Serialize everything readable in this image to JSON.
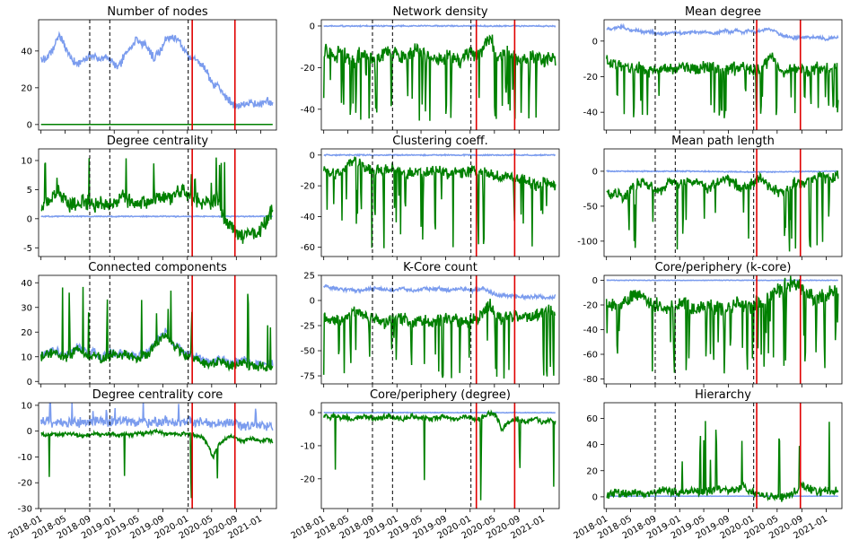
{
  "chart_data": {
    "type": "line",
    "layout": "4x3 grid, shared date x-axis",
    "x_tick_labels": [
      "2018-01",
      "2018-05",
      "2018-09",
      "2019-01",
      "2019-05",
      "2019-09",
      "2020-01",
      "2020-05",
      "2020-09",
      "2021-01"
    ],
    "x_range": [
      "2017-12-20",
      "2021-03-20"
    ],
    "colors": {
      "series_a": "#7b9cee",
      "series_b": "#008000",
      "event_major": "#e00000",
      "event_minor": "#000000"
    },
    "events_dashed": [
      "2018-09-01",
      "2018-12-10",
      "2020-01-05"
    ],
    "events_solid_col0": [
      "2020-01-25",
      "2020-08-25"
    ],
    "events_solid_col1": [
      "2020-02-01",
      "2020-08-10"
    ],
    "events_solid_col2": [
      "2020-01-20",
      "2020-08-25"
    ],
    "panels": [
      {
        "title": "Number of nodes",
        "col": 0,
        "row": 0,
        "ylim": [
          -3,
          57
        ],
        "yticks": [
          0,
          20,
          40
        ],
        "a": {
          "base": [
            35,
            36,
            40,
            49,
            43,
            36,
            33,
            34,
            37,
            37,
            36,
            36,
            34,
            31,
            37,
            42,
            46,
            44,
            42,
            36,
            40,
            46,
            48,
            46,
            42,
            36,
            36,
            33,
            28,
            22,
            20,
            15,
            12,
            10,
            11,
            12,
            11,
            11,
            13,
            12
          ],
          "vol": 1.8,
          "seed": 11
        },
        "b": {
          "base": [
            0,
            0
          ],
          "vol": 0,
          "seed": 12
        }
      },
      {
        "title": "Network density",
        "col": 1,
        "row": 0,
        "ylim": [
          -50,
          3
        ],
        "yticks": [
          0,
          -20,
          -40
        ],
        "a": {
          "base": [
            0,
            0,
            0,
            0
          ],
          "vol": 0.25,
          "seed": 21
        },
        "b": {
          "base": [
            -12,
            -13,
            -14,
            -12,
            -16,
            -17,
            -14,
            -13,
            -15,
            -16,
            -14,
            -13,
            -12,
            -15,
            -14,
            -13,
            -12,
            -14,
            -15,
            -16,
            -15,
            -14,
            -15,
            -16,
            -14,
            -13,
            -15,
            -10,
            -5,
            -14,
            -15,
            -13,
            -14,
            -15,
            -16,
            -14,
            -15,
            -16,
            -15,
            -16
          ],
          "vol": 3.0,
          "seed": 22,
          "spikes": 38,
          "spikeMin": -46
        }
      },
      {
        "title": "Mean degree",
        "col": 2,
        "row": 0,
        "ylim": [
          -50,
          12
        ],
        "yticks": [
          0,
          -20,
          -40
        ],
        "a": {
          "base": [
            7,
            7,
            8,
            8,
            6,
            6,
            5,
            5,
            5,
            4,
            4,
            5,
            5,
            4,
            5,
            5,
            5,
            5,
            4,
            5,
            6,
            5,
            6,
            5,
            6,
            5,
            6,
            7,
            6,
            4,
            3,
            2,
            2,
            2,
            2,
            2,
            2,
            1,
            2,
            2
          ],
          "vol": 0.7,
          "seed": 31
        },
        "b": {
          "base": [
            -10,
            -13,
            -12,
            -14,
            -16,
            -15,
            -14,
            -17,
            -16,
            -15,
            -14,
            -16,
            -15,
            -14,
            -15,
            -16,
            -15,
            -14,
            -15,
            -16,
            -17,
            -16,
            -15,
            -14,
            -16,
            -17,
            -15,
            -12,
            -8,
            -15,
            -20,
            -16,
            -15,
            -16,
            -17,
            -16,
            -15,
            -16,
            -15,
            -14
          ],
          "vol": 2.8,
          "seed": 32,
          "spikes": 30,
          "spikeMin": -45
        }
      },
      {
        "title": "Degree centrality",
        "col": 0,
        "row": 1,
        "ylim": [
          -6.5,
          12
        ],
        "yticks": [
          -5,
          0,
          5,
          10
        ],
        "a": {
          "base": [
            0.4,
            0.4
          ],
          "vol": 0.07,
          "seed": 41
        },
        "b": {
          "base": [
            2,
            2.5,
            4,
            5,
            3,
            2.5,
            2,
            3,
            3,
            2.5,
            3,
            2.5,
            2.5,
            3,
            4,
            3,
            2.5,
            3,
            2.5,
            3,
            3.5,
            4,
            3.5,
            4.5,
            5,
            4,
            3,
            3,
            2.5,
            3,
            2.5,
            0,
            -1,
            -2.5,
            -3,
            -2,
            -2.5,
            -2,
            0,
            2
          ],
          "vol": 1.1,
          "seed": 42,
          "spikes": 12,
          "spikeMax": 11
        }
      },
      {
        "title": "Clustering coeff.",
        "col": 1,
        "row": 1,
        "ylim": [
          -66,
          4
        ],
        "yticks": [
          0,
          -20,
          -40,
          -60
        ],
        "a": {
          "base": [
            0,
            0,
            0
          ],
          "vol": 0.3,
          "seed": 51
        },
        "b": {
          "base": [
            -10,
            -12,
            -13,
            -10,
            -6,
            -4,
            -5,
            -8,
            -9,
            -10,
            -11,
            -9,
            -8,
            -10,
            -12,
            -11,
            -10,
            -12,
            -10,
            -9,
            -11,
            -12,
            -10,
            -11,
            -12,
            -10,
            -11,
            -9,
            -12,
            -14,
            -15,
            -13,
            -14,
            -16,
            -15,
            -18,
            -20,
            -17,
            -18,
            -19
          ],
          "vol": 2.8,
          "seed": 52,
          "spikes": 30,
          "spikeMin": -62
        }
      },
      {
        "title": "Mean path length",
        "col": 2,
        "row": 1,
        "ylim": [
          -122,
          32
        ],
        "yticks": [
          0,
          -50,
          -100
        ],
        "a": {
          "base": [
            0,
            0,
            -1,
            0
          ],
          "vol": 0.6,
          "seed": 61
        },
        "b": {
          "base": [
            -30,
            -35,
            -30,
            -40,
            -25,
            -20,
            -15,
            -20,
            -25,
            -30,
            -20,
            -15,
            -20,
            -15,
            -10,
            -15,
            -20,
            -25,
            -20,
            -15,
            -10,
            -15,
            -20,
            -25,
            -20,
            -15,
            -10,
            -20,
            -25,
            -30,
            -25,
            -20,
            -15,
            -20,
            -15,
            -10,
            -5,
            -10,
            -8,
            -5
          ],
          "vol": 6,
          "seed": 62,
          "spikes": 22,
          "spikeMin": -115
        }
      },
      {
        "title": "Connected components",
        "col": 0,
        "row": 2,
        "ylim": [
          -1,
          43
        ],
        "yticks": [
          0,
          10,
          20,
          30,
          40
        ],
        "a": {
          "base": [
            11,
            12,
            13,
            12,
            11,
            12,
            14,
            13,
            11,
            12,
            10,
            11,
            12,
            11,
            12,
            11,
            10,
            11,
            12,
            15,
            18,
            20,
            16,
            14,
            12,
            11,
            10,
            9,
            8,
            8,
            9,
            8,
            7,
            8,
            9,
            8,
            7,
            7,
            7,
            7
          ],
          "vol": 1.3,
          "seed": 71
        },
        "b": {
          "base": [
            10,
            11,
            12,
            11,
            10,
            11,
            13,
            12,
            10,
            11,
            9,
            10,
            11,
            10,
            11,
            10,
            9,
            10,
            11,
            14,
            17,
            19,
            15,
            13,
            11,
            10,
            9,
            8,
            7,
            7,
            8,
            7,
            6,
            7,
            8,
            7,
            6,
            6,
            6,
            5
          ],
          "vol": 1.6,
          "seed": 72,
          "spikes": 14,
          "spikeMax": 40
        }
      },
      {
        "title": "K-Core count",
        "col": 1,
        "row": 2,
        "ylim": [
          -83,
          25
        ],
        "yticks": [
          25,
          0,
          -25,
          -50,
          -75
        ],
        "a": {
          "base": [
            15,
            13,
            12,
            11,
            11,
            10,
            10,
            11,
            11,
            12,
            11,
            10,
            11,
            12,
            11,
            10,
            11,
            12,
            11,
            12,
            11,
            10,
            11,
            12,
            11,
            10,
            11,
            12,
            8,
            6,
            5,
            5,
            4,
            4,
            3,
            4,
            4,
            3,
            3,
            4
          ],
          "vol": 1.4,
          "seed": 81
        },
        "b": {
          "base": [
            -15,
            -20,
            -18,
            -22,
            -16,
            -10,
            -12,
            -15,
            -18,
            -20,
            -22,
            -20,
            -18,
            -16,
            -20,
            -22,
            -20,
            -18,
            -22,
            -20,
            -18,
            -16,
            -18,
            -20,
            -22,
            -20,
            -18,
            -10,
            -5,
            -15,
            -18,
            -16,
            -14,
            -16,
            -18,
            -16,
            -14,
            -12,
            -10,
            -12
          ],
          "vol": 5,
          "seed": 82,
          "spikes": 30,
          "spikeMin": -78
        }
      },
      {
        "title": "Core/periphery (k-core)",
        "col": 2,
        "row": 2,
        "ylim": [
          -84,
          4
        ],
        "yticks": [
          0,
          -20,
          -40,
          -60,
          -80
        ],
        "a": {
          "base": [
            0,
            0,
            0
          ],
          "vol": 0.2,
          "seed": 91
        },
        "b": {
          "base": [
            -18,
            -20,
            -22,
            -18,
            -15,
            -12,
            -14,
            -18,
            -20,
            -22,
            -24,
            -22,
            -20,
            -18,
            -22,
            -24,
            -22,
            -20,
            -22,
            -24,
            -22,
            -20,
            -18,
            -20,
            -22,
            -20,
            -18,
            -15,
            -10,
            -8,
            -5,
            -2,
            -3,
            -8,
            -12,
            -15,
            -14,
            -12,
            -10,
            -12
          ],
          "vol": 5,
          "seed": 92,
          "spikes": 40,
          "spikeMin": -78
        }
      },
      {
        "title": "Degree centrality core",
        "col": 0,
        "row": 3,
        "ylim": [
          -30,
          11
        ],
        "yticks": [
          -30,
          -20,
          -10,
          0,
          10
        ],
        "a": {
          "base": [
            4,
            4,
            3,
            4,
            3,
            4,
            3,
            4,
            3,
            4,
            4,
            3,
            4,
            3,
            4,
            4,
            3,
            4,
            3,
            4,
            3,
            4,
            3,
            4,
            3,
            4,
            3,
            4,
            3,
            3,
            3,
            3,
            3,
            3,
            2,
            2,
            2,
            2,
            2,
            2
          ],
          "vol": 1.5,
          "seed": 101,
          "spikes": 8,
          "spikeMax": 12
        },
        "b": {
          "base": [
            -1,
            -1.5,
            -1,
            -1.5,
            -1,
            -1,
            -1.5,
            -2,
            -1.5,
            -1,
            -1.5,
            -1,
            -1,
            -1.5,
            -1,
            -1.5,
            -1,
            -1,
            -0.5,
            0,
            -0.5,
            -1,
            -1,
            -1.5,
            -1,
            -1,
            -1.5,
            -2,
            -5,
            -10,
            -5,
            -3,
            -2,
            -3,
            -4,
            -3,
            -3,
            -4,
            -3,
            -4
          ],
          "vol": 0.6,
          "seed": 102,
          "spikes": 4,
          "spikeMin": -27
        }
      },
      {
        "title": "Core/periphery (degree)",
        "col": 1,
        "row": 3,
        "ylim": [
          -29,
          3
        ],
        "yticks": [
          0,
          -10,
          -20
        ],
        "a": {
          "base": [
            0,
            0,
            0,
            0
          ],
          "vol": 0.08,
          "seed": 111
        },
        "b": {
          "base": [
            -1,
            -1.5,
            -1,
            -1.5,
            -1.5,
            -2,
            -1.5,
            -1,
            -1.5,
            -2,
            -1.5,
            -1,
            -1.5,
            -2,
            -1.5,
            -1,
            -1.5,
            -1.5,
            -2,
            -1.5,
            -1,
            -1.5,
            -2,
            -1.5,
            -1,
            -1.5,
            -2,
            -1,
            0,
            -1,
            -5,
            -3,
            -2,
            -2,
            -3,
            -2,
            -2,
            -3,
            -2,
            -3
          ],
          "vol": 0.6,
          "seed": 112,
          "spikes": 6,
          "spikeMin": -27
        }
      },
      {
        "title": "Hierarchy",
        "col": 2,
        "row": 3,
        "ylim": [
          -9,
          72
        ],
        "yticks": [
          0,
          20,
          40,
          60
        ],
        "a": {
          "base": [
            0.5,
            0.5
          ],
          "vol": 0.1,
          "seed": 121
        },
        "b": {
          "base": [
            0,
            2,
            3,
            2,
            3,
            4,
            3,
            2,
            3,
            4,
            5,
            4,
            3,
            4,
            5,
            4,
            3,
            4,
            5,
            6,
            5,
            4,
            6,
            8,
            5,
            3,
            2,
            1,
            0,
            -1,
            0,
            2,
            5,
            10,
            6,
            5,
            4,
            5,
            4,
            5
          ],
          "vol": 2.6,
          "seed": 122,
          "spikes": 10,
          "spikeMax": 60
        }
      }
    ]
  }
}
